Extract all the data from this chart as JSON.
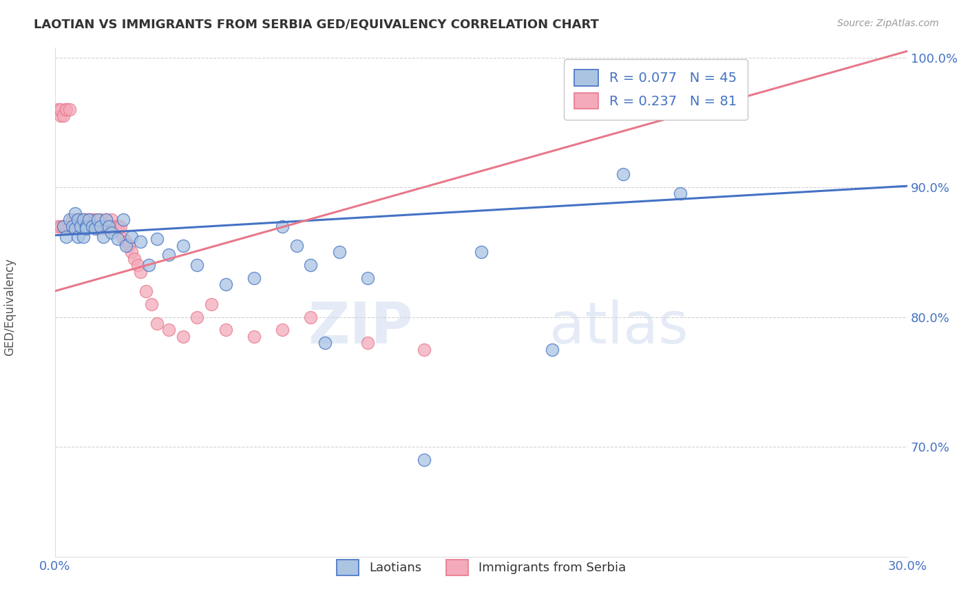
{
  "title": "LAOTIAN VS IMMIGRANTS FROM SERBIA GED/EQUIVALENCY CORRELATION CHART",
  "source_text": "Source: ZipAtlas.com",
  "xlabel_laotian": "Laotians",
  "xlabel_serbia": "Immigrants from Serbia",
  "ylabel": "GED/Equivalency",
  "x_min": 0.0,
  "x_max": 0.3,
  "y_min": 0.615,
  "y_max": 1.008,
  "x_tick_labels": [
    "0.0%",
    "30.0%"
  ],
  "x_ticks": [
    0.0,
    0.3
  ],
  "y_ticks": [
    0.7,
    0.8,
    0.9,
    1.0
  ],
  "y_tick_labels": [
    "70.0%",
    "80.0%",
    "90.0%",
    "100.0%"
  ],
  "laotian_color": "#aac4e2",
  "serbia_color": "#f4aabb",
  "laotian_edge_color": "#4472c4",
  "serbia_edge_color": "#e8788a",
  "laotian_line_color": "#4472c4",
  "serbia_line_color": "#e8788a",
  "laotian_R": 0.077,
  "laotian_N": 45,
  "serbia_R": 0.237,
  "serbia_N": 81,
  "watermark_zip": "ZIP",
  "watermark_atlas": "atlas",
  "background_color": "#ffffff",
  "grid_color": "#cccccc",
  "title_color": "#333333",
  "legend_color": "#4472c4",
  "tick_color": "#4472c4",
  "laotian_x": [
    0.003,
    0.004,
    0.005,
    0.006,
    0.007,
    0.007,
    0.008,
    0.008,
    0.009,
    0.01,
    0.01,
    0.011,
    0.011,
    0.012,
    0.013,
    0.014,
    0.015,
    0.016,
    0.017,
    0.018,
    0.019,
    0.02,
    0.022,
    0.024,
    0.025,
    0.027,
    0.03,
    0.033,
    0.036,
    0.04,
    0.045,
    0.05,
    0.06,
    0.07,
    0.08,
    0.085,
    0.09,
    0.095,
    0.1,
    0.11,
    0.13,
    0.15,
    0.175,
    0.2,
    0.22
  ],
  "laotian_y": [
    0.87,
    0.862,
    0.875,
    0.87,
    0.868,
    0.88,
    0.875,
    0.862,
    0.87,
    0.875,
    0.862,
    0.87,
    0.868,
    0.875,
    0.87,
    0.868,
    0.875,
    0.87,
    0.862,
    0.875,
    0.87,
    0.865,
    0.86,
    0.875,
    0.855,
    0.862,
    0.858,
    0.84,
    0.86,
    0.848,
    0.855,
    0.84,
    0.825,
    0.83,
    0.87,
    0.855,
    0.84,
    0.78,
    0.85,
    0.83,
    0.69,
    0.85,
    0.775,
    0.91,
    0.895
  ],
  "serbia_x": [
    0.001,
    0.001,
    0.002,
    0.002,
    0.002,
    0.003,
    0.003,
    0.003,
    0.004,
    0.004,
    0.004,
    0.004,
    0.005,
    0.005,
    0.005,
    0.005,
    0.006,
    0.006,
    0.006,
    0.006,
    0.007,
    0.007,
    0.007,
    0.007,
    0.008,
    0.008,
    0.008,
    0.008,
    0.009,
    0.009,
    0.009,
    0.01,
    0.01,
    0.01,
    0.01,
    0.011,
    0.011,
    0.011,
    0.012,
    0.012,
    0.012,
    0.013,
    0.013,
    0.013,
    0.014,
    0.014,
    0.015,
    0.015,
    0.016,
    0.016,
    0.017,
    0.017,
    0.018,
    0.018,
    0.019,
    0.019,
    0.02,
    0.02,
    0.021,
    0.022,
    0.023,
    0.024,
    0.025,
    0.026,
    0.027,
    0.028,
    0.029,
    0.03,
    0.032,
    0.034,
    0.036,
    0.04,
    0.045,
    0.05,
    0.055,
    0.06,
    0.07,
    0.08,
    0.09,
    0.11,
    0.13
  ],
  "serbia_y": [
    0.87,
    0.96,
    0.955,
    0.87,
    0.96,
    0.87,
    0.955,
    0.87,
    0.87,
    0.96,
    0.87,
    0.96,
    0.87,
    0.87,
    0.87,
    0.96,
    0.87,
    0.87,
    0.875,
    0.87,
    0.87,
    0.875,
    0.87,
    0.87,
    0.87,
    0.875,
    0.87,
    0.87,
    0.87,
    0.875,
    0.87,
    0.87,
    0.875,
    0.87,
    0.872,
    0.87,
    0.875,
    0.87,
    0.87,
    0.875,
    0.87,
    0.87,
    0.875,
    0.87,
    0.87,
    0.875,
    0.87,
    0.868,
    0.87,
    0.875,
    0.87,
    0.868,
    0.87,
    0.875,
    0.87,
    0.87,
    0.868,
    0.875,
    0.87,
    0.87,
    0.87,
    0.86,
    0.858,
    0.855,
    0.85,
    0.845,
    0.84,
    0.835,
    0.82,
    0.81,
    0.795,
    0.79,
    0.785,
    0.8,
    0.81,
    0.79,
    0.785,
    0.79,
    0.8,
    0.78,
    0.775
  ],
  "lao_line_x0": 0.0,
  "lao_line_y0": 0.863,
  "lao_line_x1": 0.3,
  "lao_line_y1": 0.901,
  "ser_line_x0": 0.0,
  "ser_line_y0": 0.82,
  "ser_line_x1": 0.3,
  "ser_line_y1": 1.005
}
